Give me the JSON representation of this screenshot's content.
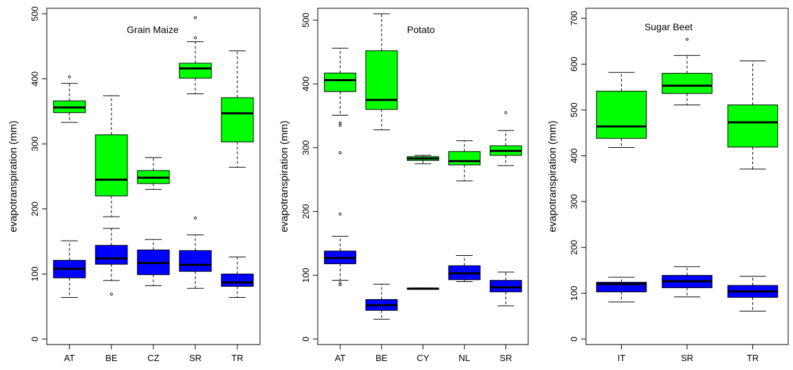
{
  "chart_data": [
    {
      "type": "boxplot",
      "title": "Grain Maize",
      "ylabel": "evapotranspiration (mm)",
      "ylim": [
        0,
        500
      ],
      "yticks": [
        0,
        100,
        200,
        300,
        400,
        500
      ],
      "categories": [
        "AT",
        "BE",
        "CZ",
        "SR",
        "TR"
      ],
      "series": [
        {
          "color": "#00ff00",
          "boxes": [
            {
              "category": "AT",
              "min": 333,
              "q1": 348,
              "median": 356,
              "q3": 366,
              "max": 393,
              "outliers": [
                403
              ]
            },
            {
              "category": "BE",
              "min": 188,
              "q1": 220,
              "median": 245,
              "q3": 314,
              "max": 374,
              "outliers": []
            },
            {
              "category": "CZ",
              "min": 230,
              "q1": 239,
              "median": 248,
              "q3": 259,
              "max": 279,
              "outliers": []
            },
            {
              "category": "SR",
              "min": 377,
              "q1": 401,
              "median": 416,
              "q3": 424,
              "max": 457,
              "outliers": [
                463,
                494
              ]
            },
            {
              "category": "TR",
              "min": 264,
              "q1": 303,
              "median": 347,
              "q3": 371,
              "max": 443,
              "outliers": []
            }
          ]
        },
        {
          "color": "#0000ff",
          "boxes": [
            {
              "category": "AT",
              "min": 64,
              "q1": 94,
              "median": 108,
              "q3": 121,
              "max": 151,
              "outliers": []
            },
            {
              "category": "BE",
              "min": 90,
              "q1": 115,
              "median": 124,
              "q3": 144,
              "max": 170,
              "outliers": [
                69
              ]
            },
            {
              "category": "CZ",
              "min": 82,
              "q1": 99,
              "median": 117,
              "q3": 137,
              "max": 153,
              "outliers": []
            },
            {
              "category": "SR",
              "min": 78,
              "q1": 104,
              "median": 114,
              "q3": 136,
              "max": 160,
              "outliers": [
                186
              ]
            },
            {
              "category": "TR",
              "min": 64,
              "q1": 81,
              "median": 87,
              "q3": 100,
              "max": 126,
              "outliers": []
            }
          ]
        }
      ]
    },
    {
      "type": "boxplot",
      "title": "Potato",
      "ylabel": "evapotranspiration (mm)",
      "ylim": [
        0,
        510
      ],
      "yticks": [
        0,
        100,
        200,
        300,
        400,
        500
      ],
      "categories": [
        "AT",
        "BE",
        "CY",
        "NL",
        "SR"
      ],
      "series": [
        {
          "color": "#00ff00",
          "boxes": [
            {
              "category": "AT",
              "min": 351,
              "q1": 388,
              "median": 406,
              "q3": 417,
              "max": 456,
              "outliers": [
                339,
                335,
                292
              ]
            },
            {
              "category": "BE",
              "min": 328,
              "q1": 360,
              "median": 375,
              "q3": 452,
              "max": 510,
              "outliers": []
            },
            {
              "category": "CY",
              "min": 275,
              "q1": 280,
              "median": 283,
              "q3": 286,
              "max": 288,
              "outliers": []
            },
            {
              "category": "NL",
              "min": 248,
              "q1": 273,
              "median": 279,
              "q3": 294,
              "max": 311,
              "outliers": []
            },
            {
              "category": "SR",
              "min": 272,
              "q1": 288,
              "median": 295,
              "q3": 303,
              "max": 327,
              "outliers": [
                355
              ]
            }
          ]
        },
        {
          "color": "#0000ff",
          "boxes": [
            {
              "category": "AT",
              "min": 92,
              "q1": 118,
              "median": 127,
              "q3": 138,
              "max": 161,
              "outliers": [
                196,
                88,
                85
              ]
            },
            {
              "category": "BE",
              "min": 31,
              "q1": 45,
              "median": 53,
              "q3": 62,
              "max": 86,
              "outliers": []
            },
            {
              "category": "CY",
              "min": 78,
              "q1": 78,
              "median": 79,
              "q3": 80,
              "max": 80,
              "outliers": []
            },
            {
              "category": "NL",
              "min": 90,
              "q1": 93,
              "median": 103,
              "q3": 115,
              "max": 131,
              "outliers": []
            },
            {
              "category": "SR",
              "min": 52,
              "q1": 74,
              "median": 81,
              "q3": 92,
              "max": 105,
              "outliers": []
            }
          ]
        }
      ]
    },
    {
      "type": "boxplot",
      "title": "Sugar Beet",
      "ylabel": "evapotranspiration (mm)",
      "ylim": [
        0,
        710
      ],
      "yticks": [
        0,
        100,
        200,
        300,
        400,
        500,
        600,
        700
      ],
      "categories": [
        "IT",
        "SR",
        "TR"
      ],
      "series": [
        {
          "color": "#00ff00",
          "boxes": [
            {
              "category": "IT",
              "min": 418,
              "q1": 438,
              "median": 464,
              "q3": 541,
              "max": 582,
              "outliers": []
            },
            {
              "category": "SR",
              "min": 511,
              "q1": 536,
              "median": 553,
              "q3": 580,
              "max": 619,
              "outliers": [
                654
              ]
            },
            {
              "category": "TR",
              "min": 371,
              "q1": 419,
              "median": 473,
              "q3": 511,
              "max": 607,
              "outliers": []
            }
          ]
        },
        {
          "color": "#0000ff",
          "boxes": [
            {
              "category": "IT",
              "min": 81,
              "q1": 103,
              "median": 120,
              "q3": 124,
              "max": 135,
              "outliers": []
            },
            {
              "category": "SR",
              "min": 92,
              "q1": 112,
              "median": 126,
              "q3": 139,
              "max": 158,
              "outliers": []
            },
            {
              "category": "TR",
              "min": 61,
              "q1": 91,
              "median": 104,
              "q3": 117,
              "max": 137,
              "outliers": []
            }
          ]
        }
      ]
    }
  ]
}
